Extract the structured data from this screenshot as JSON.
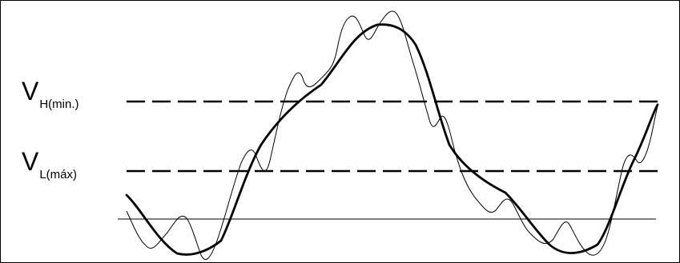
{
  "labels": {
    "vh": {
      "main": "V",
      "sub": "H(min.)"
    },
    "vl": {
      "main": "V",
      "sub": "L(máx)"
    }
  },
  "colors": {
    "line": "#000000",
    "background": "#ffffff"
  }
}
